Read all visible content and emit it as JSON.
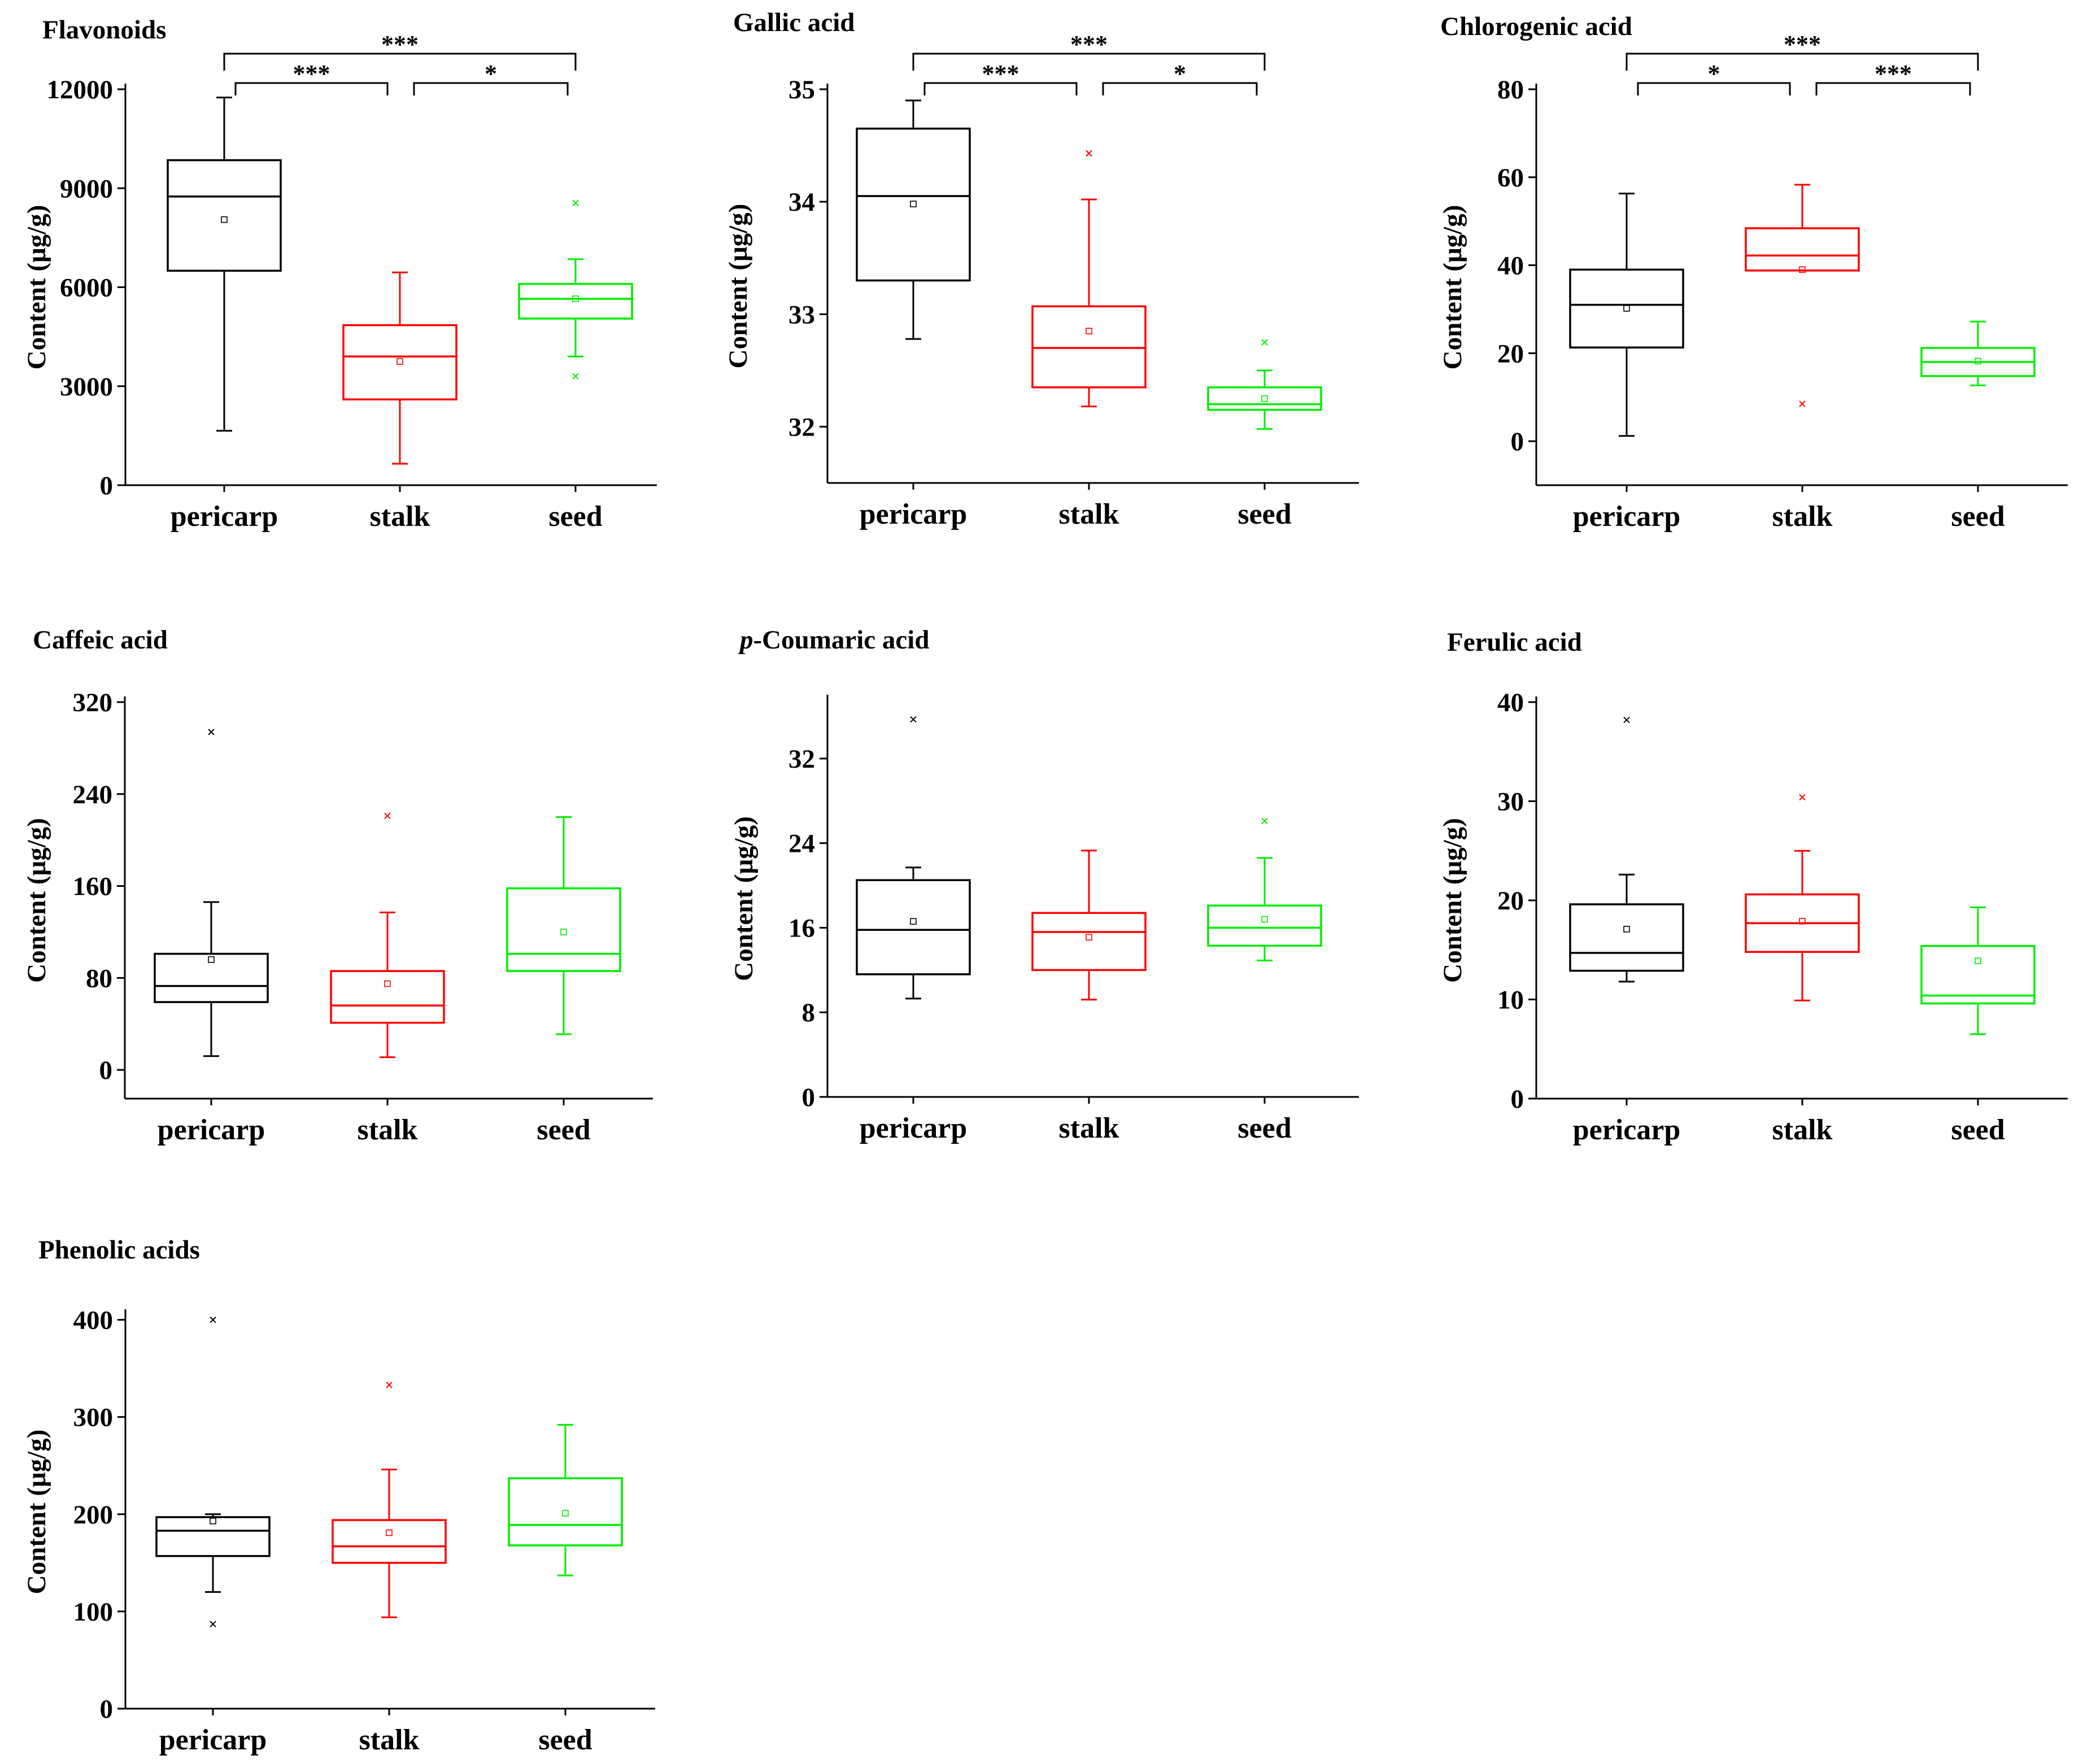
{
  "colors": {
    "pericarp": "#000000",
    "stalk": "#ff0000",
    "seed": "#00ee00",
    "axis": "#000000"
  },
  "chart_data": [
    {
      "type": "box",
      "title": "Flavonoids",
      "ylabel": "Content (μg/g)",
      "categories": [
        "pericarp",
        "stalk",
        "seed"
      ],
      "yticks": [
        0,
        3000,
        6000,
        9000,
        12000
      ],
      "ytick_labels": [
        "0",
        "3000",
        "6000",
        "9000",
        "12000"
      ],
      "ylim": [
        0,
        12000
      ],
      "boxes": [
        {
          "category": "pericarp",
          "whisker_low": 1650,
          "q1": 6500,
          "median": 8750,
          "q3": 9850,
          "whisker_high": 11750,
          "mean": 8050,
          "outliers": []
        },
        {
          "category": "stalk",
          "whisker_low": 650,
          "q1": 2600,
          "median": 3900,
          "q3": 4850,
          "whisker_high": 6450,
          "mean": 3750,
          "outliers": []
        },
        {
          "category": "seed",
          "whisker_low": 3900,
          "q1": 5050,
          "median": 5650,
          "q3": 6100,
          "whisker_high": 6850,
          "mean": 5650,
          "outliers": [
            8550,
            3300
          ]
        }
      ],
      "significance": [
        {
          "from": "pericarp",
          "to": "stalk",
          "label": "***",
          "level": 1
        },
        {
          "from": "stalk",
          "to": "seed",
          "label": "*",
          "level": 1
        },
        {
          "from": "pericarp",
          "to": "seed",
          "label": "***",
          "level": 2
        }
      ]
    },
    {
      "type": "box",
      "title": "Gallic acid",
      "ylabel": "Content (μg/g)",
      "categories": [
        "pericarp",
        "stalk",
        "seed"
      ],
      "yticks": [
        32,
        33,
        34,
        35
      ],
      "ytick_labels": [
        "32",
        "33",
        "34",
        "35"
      ],
      "ylim": [
        31.5,
        35
      ],
      "boxes": [
        {
          "category": "pericarp",
          "whisker_low": 32.78,
          "q1": 33.3,
          "median": 34.05,
          "q3": 34.65,
          "whisker_high": 34.9,
          "mean": 33.98,
          "outliers": []
        },
        {
          "category": "stalk",
          "whisker_low": 32.18,
          "q1": 32.35,
          "median": 32.7,
          "q3": 33.07,
          "whisker_high": 34.02,
          "mean": 32.85,
          "outliers": [
            34.43
          ]
        },
        {
          "category": "seed",
          "whisker_low": 31.98,
          "q1": 32.15,
          "median": 32.2,
          "q3": 32.35,
          "whisker_high": 32.5,
          "mean": 32.25,
          "outliers": [
            32.75
          ]
        }
      ],
      "significance": [
        {
          "from": "pericarp",
          "to": "stalk",
          "label": "***",
          "level": 1
        },
        {
          "from": "stalk",
          "to": "seed",
          "label": "*",
          "level": 1
        },
        {
          "from": "pericarp",
          "to": "seed",
          "label": "***",
          "level": 2
        }
      ]
    },
    {
      "type": "box",
      "title": "Chlorogenic acid",
      "ylabel": "Content (μg/g)",
      "categories": [
        "pericarp",
        "stalk",
        "seed"
      ],
      "yticks": [
        0,
        20,
        40,
        60,
        80
      ],
      "ytick_labels": [
        "0",
        "20",
        "40",
        "60",
        "80"
      ],
      "ylim": [
        -10,
        80
      ],
      "boxes": [
        {
          "category": "pericarp",
          "whisker_low": 1.2,
          "q1": 21.3,
          "median": 31,
          "q3": 39,
          "whisker_high": 56.3,
          "mean": 30.2,
          "outliers": []
        },
        {
          "category": "stalk",
          "whisker_low": 38.8,
          "q1": 38.8,
          "median": 42.2,
          "q3": 48.4,
          "whisker_high": 58.3,
          "mean": 39,
          "outliers": [
            8.5
          ]
        },
        {
          "category": "seed",
          "whisker_low": 12.7,
          "q1": 14.8,
          "median": 18,
          "q3": 21.2,
          "whisker_high": 27.2,
          "mean": 18.2,
          "outliers": []
        }
      ],
      "significance": [
        {
          "from": "pericarp",
          "to": "stalk",
          "label": "*",
          "level": 1
        },
        {
          "from": "stalk",
          "to": "seed",
          "label": "***",
          "level": 1
        },
        {
          "from": "pericarp",
          "to": "seed",
          "label": "***",
          "level": 2
        }
      ]
    },
    {
      "type": "box",
      "title": "Caffeic acid",
      "ylabel": "Content (μg/g)",
      "categories": [
        "pericarp",
        "stalk",
        "seed"
      ],
      "yticks": [
        0,
        80,
        160,
        240,
        320
      ],
      "ytick_labels": [
        "0",
        "80",
        "160",
        "240",
        "320"
      ],
      "ylim": [
        -25,
        320
      ],
      "boxes": [
        {
          "category": "pericarp",
          "whisker_low": 12,
          "q1": 59,
          "median": 73,
          "q3": 101,
          "whisker_high": 146,
          "mean": 96,
          "outliers": [
            294
          ]
        },
        {
          "category": "stalk",
          "whisker_low": 11,
          "q1": 41,
          "median": 56,
          "q3": 86,
          "whisker_high": 137,
          "mean": 75,
          "outliers": [
            221
          ]
        },
        {
          "category": "seed",
          "whisker_low": 31,
          "q1": 86,
          "median": 101,
          "q3": 158,
          "whisker_high": 220,
          "mean": 120,
          "outliers": []
        }
      ],
      "significance": []
    },
    {
      "type": "box",
      "title_prefix": "p",
      "title": "-Coumaric acid",
      "ylabel": "Content (μg/g)",
      "categories": [
        "pericarp",
        "stalk",
        "seed"
      ],
      "yticks": [
        0,
        8,
        16,
        24,
        32
      ],
      "ytick_labels": [
        "0",
        "8",
        "16",
        "24",
        "32"
      ],
      "ylim": [
        0,
        37.5
      ],
      "boxes": [
        {
          "category": "pericarp",
          "whisker_low": 9.3,
          "q1": 11.6,
          "median": 15.8,
          "q3": 20.5,
          "whisker_high": 21.7,
          "mean": 16.6,
          "outliers": [
            35.7
          ]
        },
        {
          "category": "stalk",
          "whisker_low": 9.2,
          "q1": 12,
          "median": 15.6,
          "q3": 17.4,
          "whisker_high": 23.3,
          "mean": 15.1,
          "outliers": []
        },
        {
          "category": "seed",
          "whisker_low": 12.9,
          "q1": 14.3,
          "median": 16,
          "q3": 18.1,
          "whisker_high": 22.6,
          "mean": 16.8,
          "outliers": [
            26.1
          ]
        }
      ],
      "significance": []
    },
    {
      "type": "box",
      "title": "Ferulic acid",
      "ylabel": "Content (μg/g)",
      "categories": [
        "pericarp",
        "stalk",
        "seed"
      ],
      "yticks": [
        0,
        10,
        20,
        30,
        40
      ],
      "ytick_labels": [
        "0",
        "10",
        "20",
        "30",
        "40"
      ],
      "ylim": [
        0,
        40
      ],
      "boxes": [
        {
          "category": "pericarp",
          "whisker_low": 11.8,
          "q1": 12.9,
          "median": 14.7,
          "q3": 19.6,
          "whisker_high": 22.6,
          "mean": 17.1,
          "outliers": [
            38.2
          ]
        },
        {
          "category": "stalk",
          "whisker_low": 9.9,
          "q1": 14.8,
          "median": 17.7,
          "q3": 20.6,
          "whisker_high": 25,
          "mean": 17.9,
          "outliers": [
            30.4
          ]
        },
        {
          "category": "seed",
          "whisker_low": 6.5,
          "q1": 9.6,
          "median": 10.4,
          "q3": 15.4,
          "whisker_high": 19.3,
          "mean": 13.9,
          "outliers": []
        }
      ],
      "significance": []
    },
    {
      "type": "box",
      "title": "Phenolic acids",
      "ylabel": "Content (μg/g)",
      "categories": [
        "pericarp",
        "stalk",
        "seed"
      ],
      "yticks": [
        0,
        100,
        200,
        300,
        400
      ],
      "ytick_labels": [
        "0",
        "100",
        "200",
        "300",
        "400"
      ],
      "ylim": [
        0,
        405
      ],
      "boxes": [
        {
          "category": "pericarp",
          "whisker_low": 120,
          "q1": 157,
          "median": 183,
          "q3": 197,
          "whisker_high": 200,
          "mean": 193,
          "outliers": [
            400,
            87
          ]
        },
        {
          "category": "stalk",
          "whisker_low": 94,
          "q1": 150,
          "median": 167,
          "q3": 194,
          "whisker_high": 246,
          "mean": 181,
          "outliers": [
            333
          ]
        },
        {
          "category": "seed",
          "whisker_low": 137,
          "q1": 168,
          "median": 189,
          "q3": 237,
          "whisker_high": 292,
          "mean": 201,
          "outliers": []
        }
      ],
      "significance": []
    }
  ]
}
